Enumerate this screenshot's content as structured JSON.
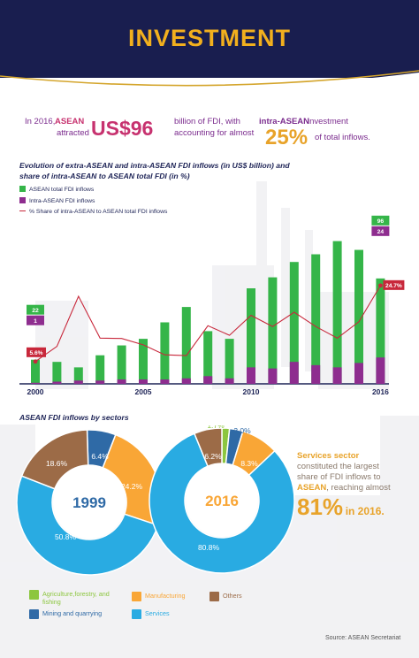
{
  "header": {
    "title": "INVESTMENT"
  },
  "intro": {
    "line1_prefix": "In 2016,",
    "line1_asean": "ASEAN",
    "line2_attracted": "attracted",
    "amount": "US$96",
    "line1_mid": "billion of FDI, with",
    "line1_bold": "intra-ASEAN",
    "line1_end": "investment",
    "line2_mid": "accounting for almost",
    "percent": "25%",
    "line2_end": "of total inflows."
  },
  "chart_data": [
    {
      "type": "bar",
      "title": "Evolution of extra-ASEAN and intra-ASEAN FDI inflows (in US$ billion) and share of intra-ASEAN to ASEAN total FDI (in %)",
      "x": [
        2000,
        2001,
        2002,
        2003,
        2004,
        2005,
        2006,
        2007,
        2008,
        2009,
        2010,
        2011,
        2012,
        2013,
        2014,
        2015,
        2016
      ],
      "x_tick_labels": [
        "2000",
        "2005",
        "2010",
        "2016"
      ],
      "x_ticks": [
        2000,
        2005,
        2010,
        2016
      ],
      "series": [
        {
          "name": "ASEAN total FDI inflows",
          "kind": "bar",
          "color": "#35b549",
          "values": [
            22,
            20,
            15,
            26,
            35,
            41,
            56,
            70,
            48,
            41,
            87,
            97,
            111,
            118,
            130,
            122,
            96
          ]
        },
        {
          "name": "Intra-ASEAN FDI inflows",
          "kind": "bar",
          "color": "#8e2d8f",
          "values": [
            1,
            2,
            3,
            3,
            4,
            4,
            4,
            5,
            7,
            5,
            15,
            14,
            20,
            17,
            15,
            19,
            24
          ]
        },
        {
          "name": "% Share of intra-ASEAN to ASEAN total FDI inflows",
          "kind": "line",
          "axis": "secondary",
          "color": "#c8283b",
          "values": [
            5.6,
            9.4,
            22.0,
            11.5,
            11.4,
            9.8,
            7.3,
            7.1,
            14.6,
            12.2,
            17.2,
            14.4,
            18.0,
            14.4,
            11.5,
            15.6,
            24.7
          ]
        }
      ],
      "annotations": {
        "bar_start_total": "22",
        "bar_start_intra": "1",
        "bar_end_total": "96",
        "bar_end_intra": "24",
        "share_start": "5.6%",
        "share_end": "24.7%"
      },
      "ylim": [
        0,
        145
      ],
      "y2lim": [
        0,
        40
      ],
      "grid": false,
      "legend_position": "top-left"
    },
    {
      "type": "pie",
      "title": "ASEAN FDI inflows by sectors",
      "center_label": "1999",
      "categories": [
        "Agriculture,forestry, and fishing",
        "Mining and quarrying",
        "Manufacturing",
        "Services",
        "Others"
      ],
      "values": [
        0,
        6.4,
        24.2,
        50.8,
        18.6
      ],
      "labels": [
        "",
        "6.4%",
        "24.2%",
        "50.8%",
        "18.6%"
      ],
      "colors": [
        "#8cc63f",
        "#2f6aa6",
        "#f9a636",
        "#29abe2",
        "#9c6b47"
      ]
    },
    {
      "type": "pie",
      "title": "",
      "center_label": "2016",
      "categories": [
        "Agriculture,forestry, and fishing",
        "Mining and quarrying",
        "Manufacturing",
        "Services",
        "Others"
      ],
      "values": [
        1.7,
        3.0,
        8.3,
        80.8,
        6.2
      ],
      "labels": [
        "1.7%",
        "3.0%",
        "8.3%",
        "80.8%",
        "6.2%"
      ],
      "colors": [
        "#8cc63f",
        "#2f6aa6",
        "#f9a636",
        "#29abe2",
        "#9c6b47"
      ]
    }
  ],
  "services_note": {
    "line1": "Services sector",
    "line2": "constituted the largest",
    "line3": "share of FDI inflows to",
    "asean": "ASEAN",
    "line4_end": ", reaching almost",
    "big": "81%",
    "year": "in 2016."
  },
  "pie_legend": {
    "agri": "Agriculture,forestry, and fishing",
    "mining": "Mining and quarrying",
    "manufacturing": "Manufacturing",
    "services": "Services",
    "others": "Others"
  },
  "source": "Source: ASEAN Secretariat"
}
